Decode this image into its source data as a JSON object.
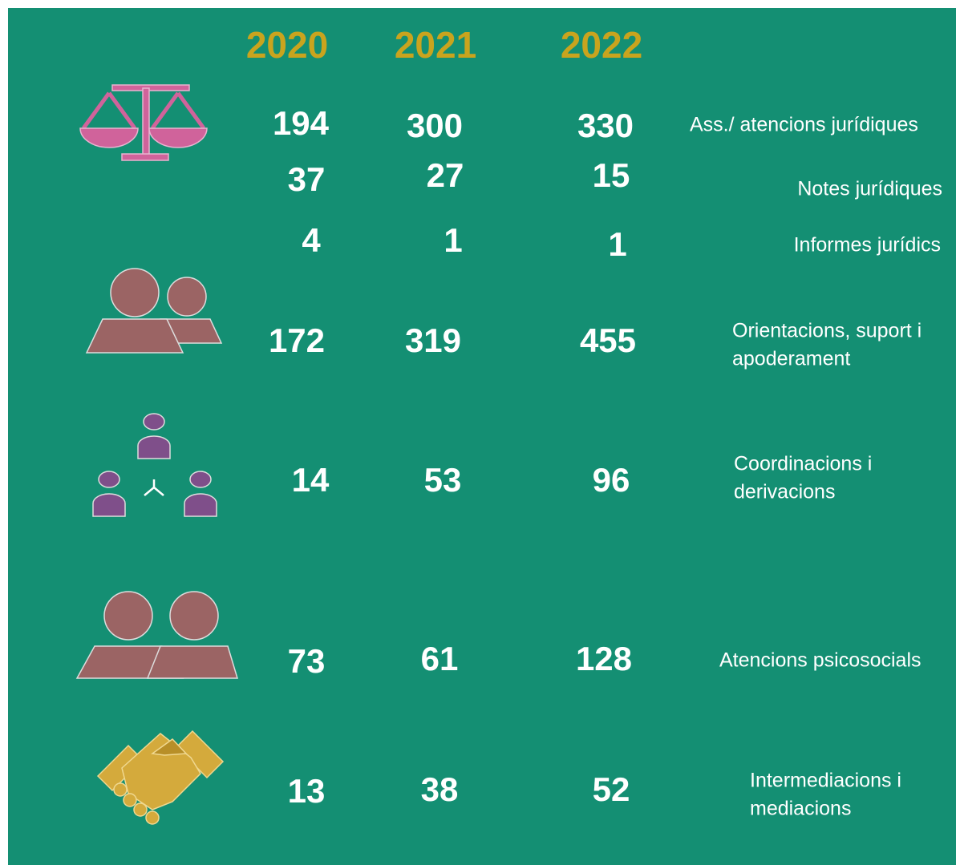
{
  "header": {
    "years": [
      "2020",
      "2021",
      "2022"
    ]
  },
  "rows": [
    {
      "values": [
        "194",
        "300",
        "330"
      ],
      "label": [
        "Ass./ atencions jurídiques"
      ]
    },
    {
      "values": [
        "37",
        "27",
        "15"
      ],
      "label": [
        "Notes  jurídiques"
      ]
    },
    {
      "values": [
        "4",
        "1",
        "1"
      ],
      "label": [
        "Informes  jurídics"
      ]
    },
    {
      "values": [
        "172",
        "319",
        "455"
      ],
      "label": [
        "Orientacions, suport  i",
        "apoderament"
      ]
    },
    {
      "values": [
        "14",
        "53",
        "96"
      ],
      "label": [
        "Coordinacions  i",
        "derivacions"
      ]
    },
    {
      "values": [
        "73",
        "61",
        "128"
      ],
      "label": [
        "Atencions  psicosocials"
      ]
    },
    {
      "values": [
        "13",
        "38",
        "52"
      ],
      "label": [
        "Intermediacions i",
        "mediacions"
      ]
    }
  ]
}
